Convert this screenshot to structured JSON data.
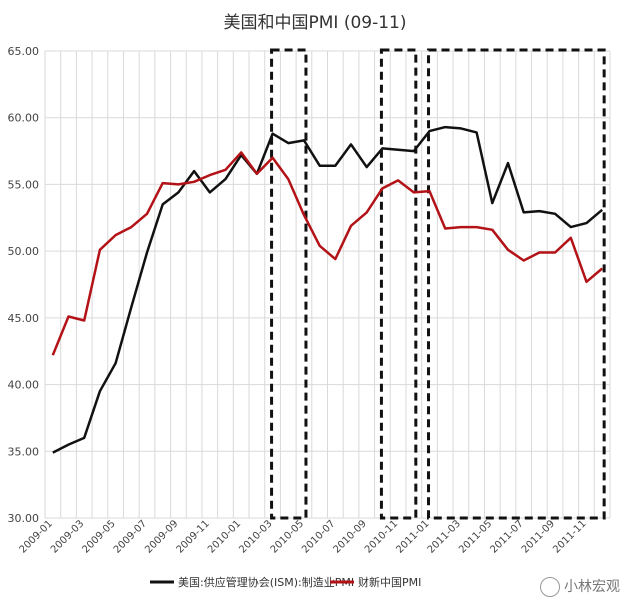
{
  "chart_data": {
    "type": "line",
    "title": "美国和中国PMI (09-11)",
    "ylim": [
      30,
      65
    ],
    "yticks": [
      "30.00",
      "35.00",
      "40.00",
      "45.00",
      "50.00",
      "55.00",
      "60.00",
      "65.00"
    ],
    "ytick_values": [
      30,
      35,
      40,
      45,
      50,
      55,
      60,
      65
    ],
    "x": [
      "2009-01",
      "2009-02",
      "2009-03",
      "2009-04",
      "2009-05",
      "2009-06",
      "2009-07",
      "2009-08",
      "2009-09",
      "2009-10",
      "2009-11",
      "2009-12",
      "2010-01",
      "2010-02",
      "2010-03",
      "2010-04",
      "2010-05",
      "2010-06",
      "2010-07",
      "2010-08",
      "2010-09",
      "2010-10",
      "2010-11",
      "2010-12",
      "2011-01",
      "2011-02",
      "2011-03",
      "2011-04",
      "2011-05",
      "2011-06",
      "2011-07",
      "2011-08",
      "2011-09",
      "2011-10",
      "2011-11",
      "2011-12"
    ],
    "xtick_labels": [
      "2009-01",
      "2009-03",
      "2009-05",
      "2009-07",
      "2009-09",
      "2009-11",
      "2010-01",
      "2010-03",
      "2010-05",
      "2010-07",
      "2010-09",
      "2010-11",
      "2011-01",
      "2011-03",
      "2011-05",
      "2011-07",
      "2011-09",
      "2011-11"
    ],
    "series": [
      {
        "name": "美国:供应管理协会(ISM):制造业PMI",
        "color": "#111111",
        "values": [
          34.9,
          35.5,
          36.0,
          39.5,
          41.6,
          45.8,
          49.9,
          53.5,
          54.4,
          56.0,
          54.4,
          55.4,
          57.2,
          55.8,
          58.8,
          58.1,
          58.3,
          56.4,
          56.4,
          58.0,
          56.3,
          57.7,
          57.6,
          57.5,
          59.0,
          59.3,
          59.2,
          58.9,
          53.6,
          56.6,
          52.9,
          53.0,
          52.8,
          51.8,
          52.1,
          53.1
        ]
      },
      {
        "name": "财新中国PMI",
        "color": "#b31217",
        "values": [
          42.2,
          45.1,
          44.8,
          50.1,
          51.2,
          51.8,
          52.8,
          55.1,
          55.0,
          55.2,
          55.7,
          56.1,
          57.4,
          55.8,
          57.0,
          55.4,
          52.7,
          50.4,
          49.4,
          51.9,
          52.9,
          54.7,
          55.3,
          54.4,
          54.5,
          51.7,
          51.8,
          51.8,
          51.6,
          50.1,
          49.3,
          49.9,
          49.9,
          51.0,
          47.7,
          48.7
        ]
      }
    ],
    "highlight_ranges": [
      [
        "2010-03",
        "2010-05"
      ],
      [
        "2010-10",
        "2010-12"
      ],
      [
        "2011-01",
        "2011-12"
      ]
    ],
    "legend_position": "bottom"
  },
  "watermark": "小林宏观",
  "watermark_icon": "wechat-icon"
}
